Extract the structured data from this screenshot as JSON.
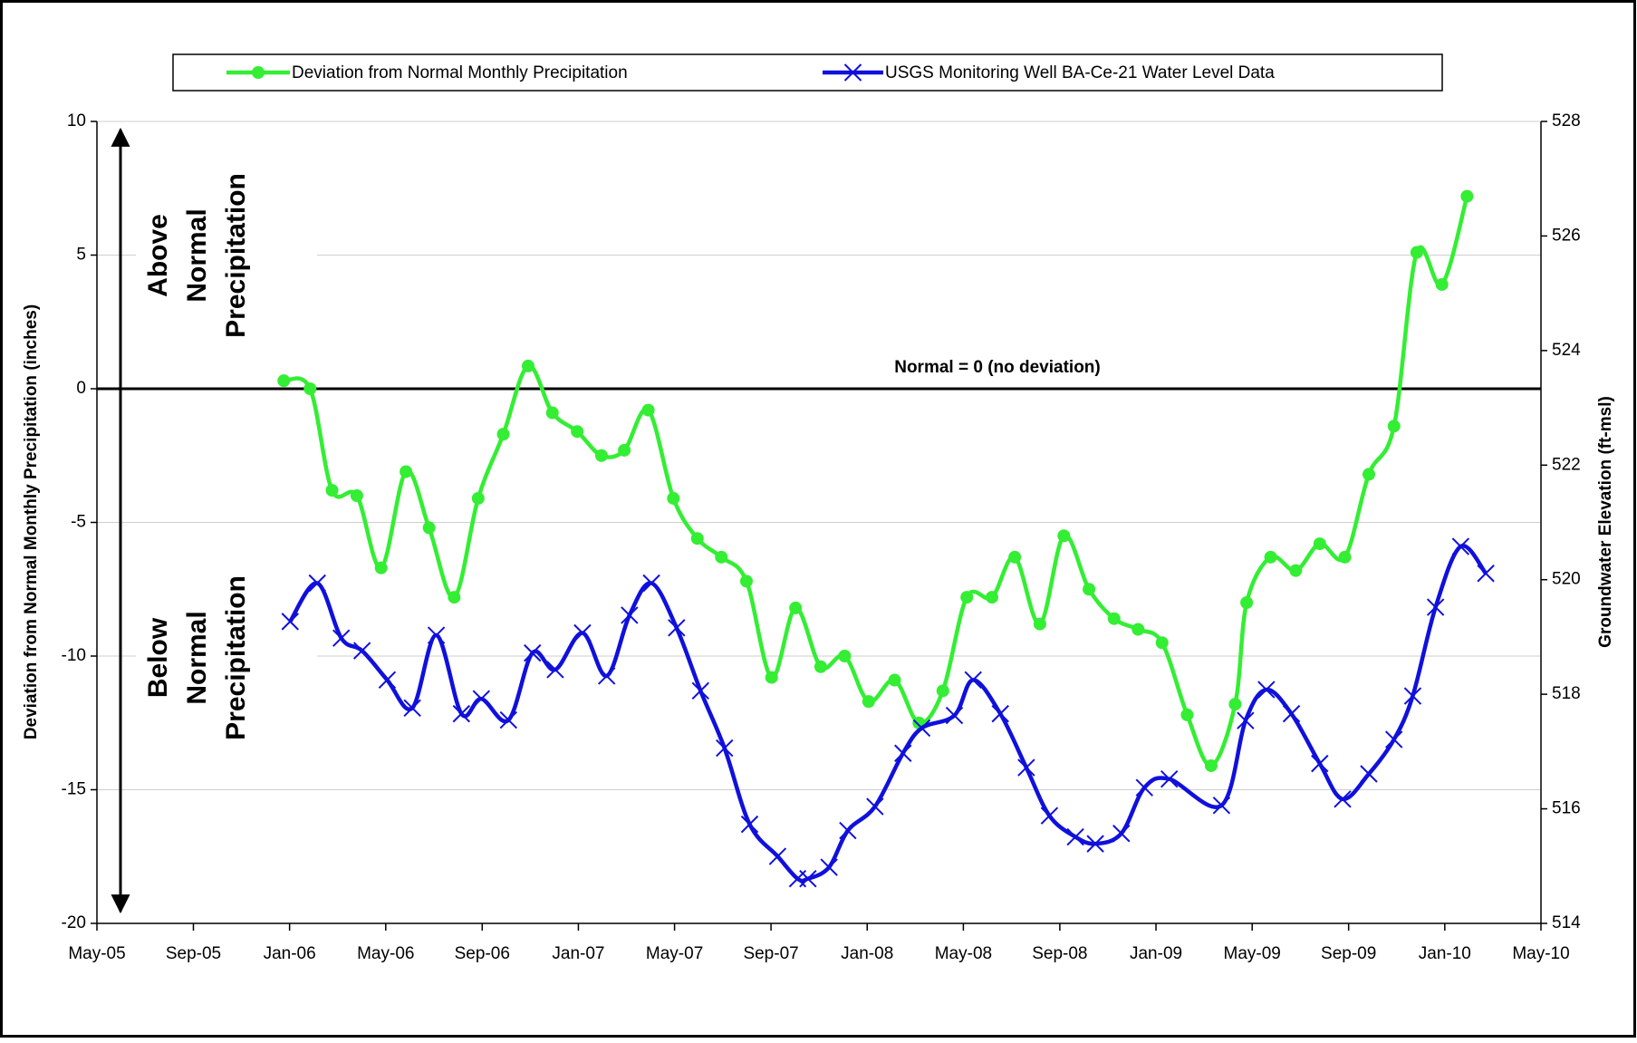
{
  "chart_data": {
    "type": "line",
    "ylabel": "Deviation from Normal Monthly Precipitation (inches)",
    "y2label": "Groundwater Elevation (ft-msl)",
    "annotations": [
      "Normal = 0 (no deviation)"
    ],
    "above_label": [
      "Above",
      "Normal",
      "Precipitation"
    ],
    "below_label": [
      "Below",
      "Normal",
      "Precipitation"
    ],
    "xlim": [
      2005.333,
      2010.333
    ],
    "xticks": [
      {
        "value": 2005.333,
        "label": "May-05"
      },
      {
        "value": 2005.667,
        "label": "Sep-05"
      },
      {
        "value": 2006,
        "label": "Jan-06"
      },
      {
        "value": 2006.333,
        "label": "May-06"
      },
      {
        "value": 2006.667,
        "label": "Sep-06"
      },
      {
        "value": 2007,
        "label": "Jan-07"
      },
      {
        "value": 2007.333,
        "label": "May-07"
      },
      {
        "value": 2007.667,
        "label": "Sep-07"
      },
      {
        "value": 2008,
        "label": "Jan-08"
      },
      {
        "value": 2008.333,
        "label": "May-08"
      },
      {
        "value": 2008.667,
        "label": "Sep-08"
      },
      {
        "value": 2009,
        "label": "Jan-09"
      },
      {
        "value": 2009.333,
        "label": "May-09"
      },
      {
        "value": 2009.667,
        "label": "Sep-09"
      },
      {
        "value": 2010,
        "label": "Jan-10"
      },
      {
        "value": 2010.333,
        "label": "May-10"
      }
    ],
    "ylim": [
      -20,
      10
    ],
    "yticks": [
      10,
      5,
      0,
      -5,
      -10,
      -15,
      -20
    ],
    "y2lim": [
      514,
      528
    ],
    "y2ticks": [
      528,
      526,
      524,
      522,
      520,
      518,
      516,
      514
    ],
    "grid": true,
    "series": [
      {
        "name": "Deviation from Normal Monthly Precipitation",
        "color": "#33ee33",
        "marker": "circle",
        "x": [
          2005.98,
          2006.071,
          2006.147,
          2006.233,
          2006.317,
          2006.403,
          2006.483,
          2006.57,
          2006.653,
          2006.74,
          2006.826,
          2006.91,
          2006.996,
          2007.08,
          2007.159,
          2007.242,
          2007.329,
          2007.412,
          2007.495,
          2007.582,
          2007.669,
          2007.752,
          2007.839,
          2007.922,
          2008.005,
          2008.095,
          2008.179,
          2008.262,
          2008.345,
          2008.432,
          2008.511,
          2008.598,
          2008.681,
          2008.768,
          2008.855,
          2008.938,
          2009.021,
          2009.108,
          2009.191,
          2009.274,
          2009.314,
          2009.397,
          2009.484,
          2009.567,
          2009.654,
          2009.737,
          2009.824,
          2009.903,
          2009.99,
          2010.077
        ],
        "values": [
          0.3,
          0,
          -3.8,
          -4,
          -6.7,
          -3.1,
          -5.2,
          -7.8,
          -4.1,
          -1.7,
          0.85,
          -0.9,
          -1.6,
          -2.5,
          -2.3,
          -0.8,
          -4.1,
          -5.6,
          -6.3,
          -7.2,
          -10.8,
          -8.2,
          -10.4,
          -10,
          -11.7,
          -10.9,
          -12.5,
          -11.3,
          -7.8,
          -7.8,
          -6.3,
          -8.8,
          -5.5,
          -7.5,
          -8.6,
          -9,
          -9.5,
          -12.2,
          -14.1,
          -11.8,
          -8,
          -6.3,
          -6.8,
          -5.8,
          -6.3,
          -3.2,
          -1.4,
          5.1,
          3.9,
          7.2
        ]
      },
      {
        "name": "USGS Monitoring Well BA-Ce-21 Water Level Data",
        "color": "#1010dd",
        "marker": "x",
        "axis": "y2",
        "x": [
          2006.002,
          2006.096,
          2006.179,
          2006.251,
          2006.338,
          2006.425,
          2006.508,
          2006.595,
          2006.664,
          2006.758,
          2006.841,
          2006.92,
          2007.014,
          2007.098,
          2007.177,
          2007.253,
          2007.34,
          2007.423,
          2007.506,
          2007.593,
          2007.69,
          2007.759,
          2007.795,
          2007.868,
          2007.933,
          2008.027,
          2008.124,
          2008.189,
          2008.302,
          2008.367,
          2008.461,
          2008.551,
          2008.631,
          2008.721,
          2008.79,
          2008.88,
          2008.96,
          2009.046,
          2009.227,
          2009.31,
          2009.382,
          2009.469,
          2009.567,
          2009.646,
          2009.737,
          2009.824,
          2009.889,
          2009.968,
          2010.055,
          2010.142
        ],
        "values": [
          519.27,
          519.94,
          518.98,
          518.76,
          518.25,
          517.76,
          519.03,
          517.66,
          517.92,
          517.55,
          518.72,
          518.43,
          519.07,
          518.32,
          519.38,
          519.94,
          519.16,
          518.06,
          517.06,
          515.73,
          515.17,
          514.78,
          514.78,
          514.98,
          515.62,
          516.04,
          516.97,
          517.41,
          517.63,
          518.25,
          517.66,
          516.72,
          515.88,
          515.51,
          515.39,
          515.57,
          516.37,
          516.52,
          516.06,
          517.54,
          518.08,
          517.66,
          516.79,
          516.17,
          516.61,
          517.21,
          517.97,
          519.52,
          520.58,
          520.11
        ]
      }
    ]
  }
}
